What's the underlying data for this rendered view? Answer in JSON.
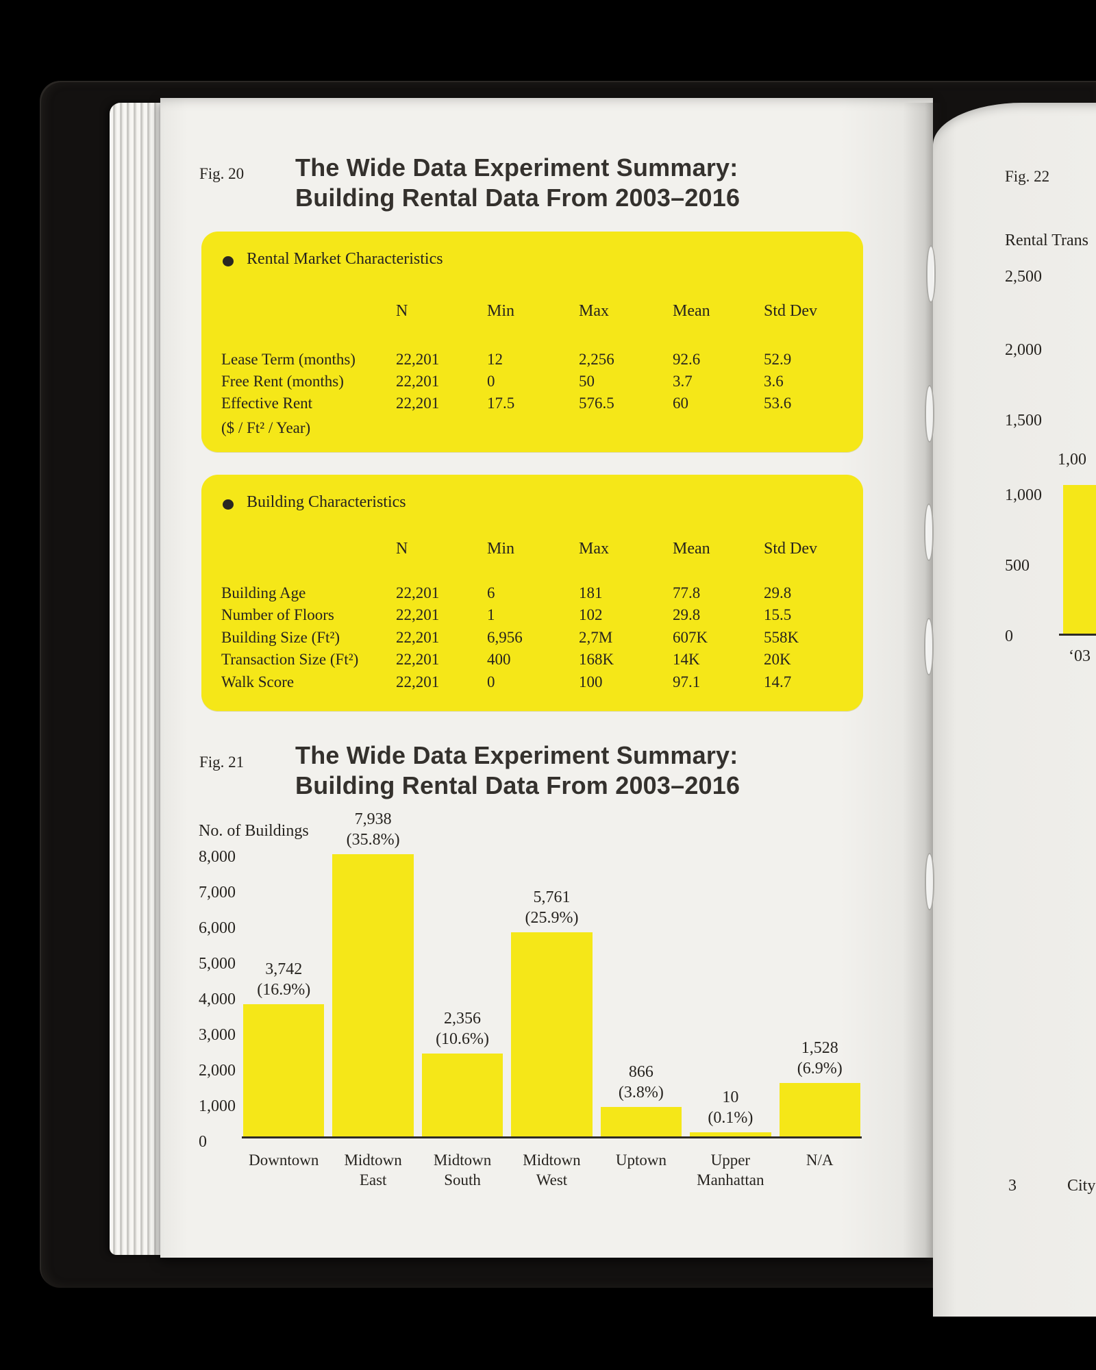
{
  "colors": {
    "background": "#000000",
    "page": "#f1f0ec",
    "highlight_yellow": "#f5e718",
    "ink": "#26231f"
  },
  "left_page": {
    "fig20": {
      "label": "Fig. 20",
      "title_line1": "The Wide Data Experiment Summary:",
      "title_line2": "Building Rental Data From 2003–2016"
    },
    "market_table": {
      "header": "Rental Market Characteristics",
      "columns": [
        "N",
        "Min",
        "Max",
        "Mean",
        "Std Dev"
      ],
      "rows": [
        {
          "label": "Lease Term (months)",
          "n": "22,201",
          "min": "12",
          "max": "2,256",
          "mean": "92.6",
          "std": "52.9"
        },
        {
          "label": "Free Rent (months)",
          "n": "22,201",
          "min": "0",
          "max": "50",
          "mean": "3.7",
          "std": "3.6"
        },
        {
          "label": "Effective Rent",
          "n": "22,201",
          "min": "17.5",
          "max": "576.5",
          "mean": "60",
          "std": "53.6"
        }
      ],
      "row3_label_line2": "($ / Ft² / Year)"
    },
    "building_table": {
      "header": "Building Characteristics",
      "columns": [
        "N",
        "Min",
        "Max",
        "Mean",
        "Std Dev"
      ],
      "rows": [
        {
          "label": "Building Age",
          "n": "22,201",
          "min": "6",
          "max": "181",
          "mean": "77.8",
          "std": "29.8"
        },
        {
          "label": "Number of Floors",
          "n": "22,201",
          "min": "1",
          "max": "102",
          "mean": "29.8",
          "std": "15.5"
        },
        {
          "label": "Building Size (Ft²)",
          "n": "22,201",
          "min": "6,956",
          "max": "2,7M",
          "mean": "607K",
          "std": "558K"
        },
        {
          "label": "Transaction Size (Ft²)",
          "n": "22,201",
          "min": "400",
          "max": "168K",
          "mean": "14K",
          "std": "20K"
        },
        {
          "label": "Walk Score",
          "n": "22,201",
          "min": "0",
          "max": "100",
          "mean": "97.1",
          "std": "14.7"
        }
      ]
    },
    "fig21": {
      "label": "Fig. 21",
      "title_line1": "The Wide Data Experiment Summary:",
      "title_line2": "Building Rental Data From 2003–2016"
    }
  },
  "right_page": {
    "fig22_label": "Fig. 22",
    "axis_title_visible": "Rental Trans",
    "bar_value_visible": "1,00",
    "x_tick": "‘03",
    "footnote_number": "3",
    "footnote_text_visible": "City"
  },
  "chart_data": [
    {
      "id": "fig21-buildings-by-submarket",
      "type": "bar",
      "title": "The Wide Data Experiment Summary: Building Rental Data From 2003–2016",
      "ylabel": "No. of Buildings",
      "ylim": [
        0,
        8000
      ],
      "grid": false,
      "yticks": [
        "8,000",
        "7,000",
        "6,000",
        "5,000",
        "4,000",
        "3,000",
        "2,000",
        "1,000",
        "0"
      ],
      "categories": [
        "Downtown",
        "Midtown East",
        "Midtown South",
        "Midtown West",
        "Uptown",
        "Upper Manhattan",
        "N/A"
      ],
      "categories_display": [
        "Downtown",
        "Midtown\nEast",
        "Midtown\nSouth",
        "Midtown\nWest",
        "Uptown",
        "Upper\nManhattan",
        "N/A"
      ],
      "values": [
        3742,
        7938,
        2356,
        5761,
        866,
        10,
        1528
      ],
      "value_labels": [
        "3,742",
        "7,938",
        "2,356",
        "5,761",
        "866",
        "10",
        "1,528"
      ],
      "percent_labels": [
        "(16.9%)",
        "(35.8%)",
        "(10.6%)",
        "(25.9%)",
        "(3.8%)",
        "(0.1%)",
        "(6.9%)"
      ],
      "bar_color": "#f5e718"
    },
    {
      "id": "fig22-rental-transactions",
      "type": "bar",
      "clipped": true,
      "ylabel_visible": "Rental Trans",
      "ylim": [
        0,
        2500
      ],
      "grid": false,
      "yticks": [
        "2,500",
        "2,000",
        "1,500",
        "1,000",
        "500",
        "0"
      ],
      "categories": [
        "‘03"
      ],
      "values": [
        1055
      ],
      "value_labels": [
        "1,00"
      ],
      "bar_color": "#f5e718"
    }
  ]
}
